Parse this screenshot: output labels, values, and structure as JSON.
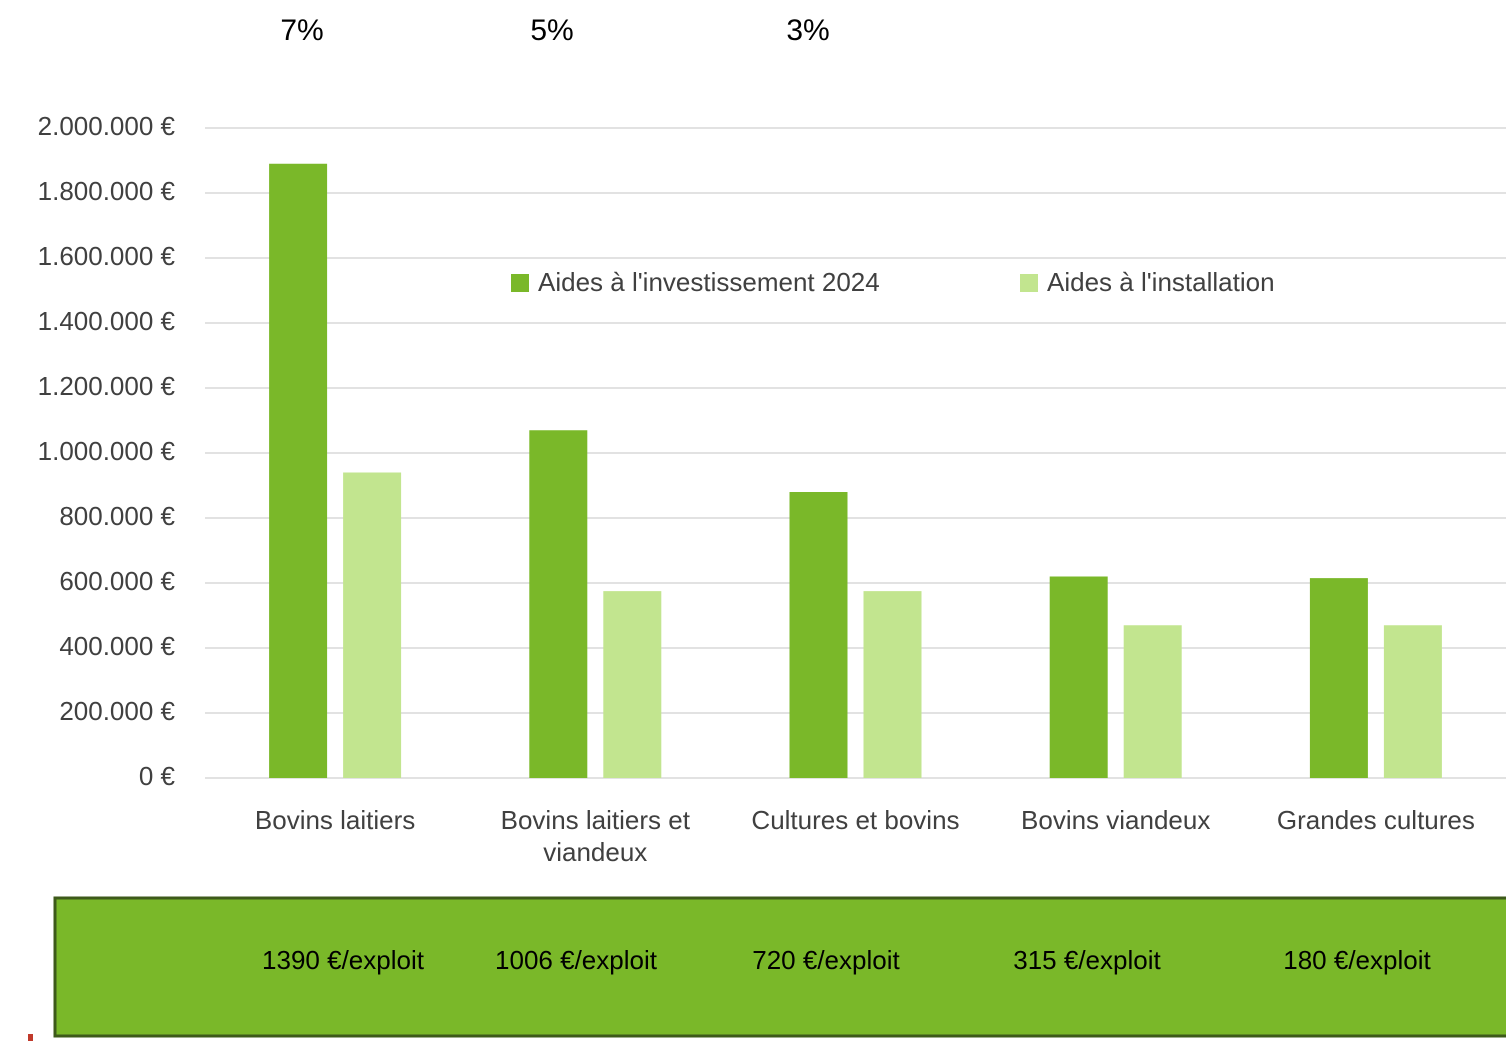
{
  "chart_data": {
    "type": "bar",
    "categories": [
      "Bovins laitiers",
      "Bovins laitiers et viandeux",
      "Cultures et bovins",
      "Bovins viandeux",
      "Grandes cultures"
    ],
    "series": [
      {
        "name": "Aides à l'investissement 2024",
        "color": "#7ab829",
        "values": [
          1890000,
          1070000,
          880000,
          620000,
          615000
        ]
      },
      {
        "name": "Aides à l'installation",
        "color": "#c2e58f",
        "values": [
          940000,
          575000,
          575000,
          470000,
          470000
        ]
      }
    ],
    "ylim": [
      0,
      2000000
    ],
    "yticks": [
      {
        "value": 0,
        "label": "0 €"
      },
      {
        "value": 200000,
        "label": "200.000 €"
      },
      {
        "value": 400000,
        "label": "400.000 €"
      },
      {
        "value": 600000,
        "label": "600.000 €"
      },
      {
        "value": 800000,
        "label": "800.000 €"
      },
      {
        "value": 1000000,
        "label": "1.000.000 €"
      },
      {
        "value": 1200000,
        "label": "1.200.000 €"
      },
      {
        "value": 1400000,
        "label": "1.400.000 €"
      },
      {
        "value": 1600000,
        "label": "1.600.000 €"
      },
      {
        "value": 1800000,
        "label": "1.800.000 €"
      },
      {
        "value": 2000000,
        "label": "2.000.000 €"
      }
    ],
    "grid": true,
    "legend": "top",
    "top_annotations": [
      "7%",
      "5%",
      "3%"
    ],
    "bottom_annotations": [
      "1390 €/exploit",
      "1006 €/exploit",
      "720 €/exploit",
      "315 €/exploit",
      "180 €/exploit"
    ]
  }
}
